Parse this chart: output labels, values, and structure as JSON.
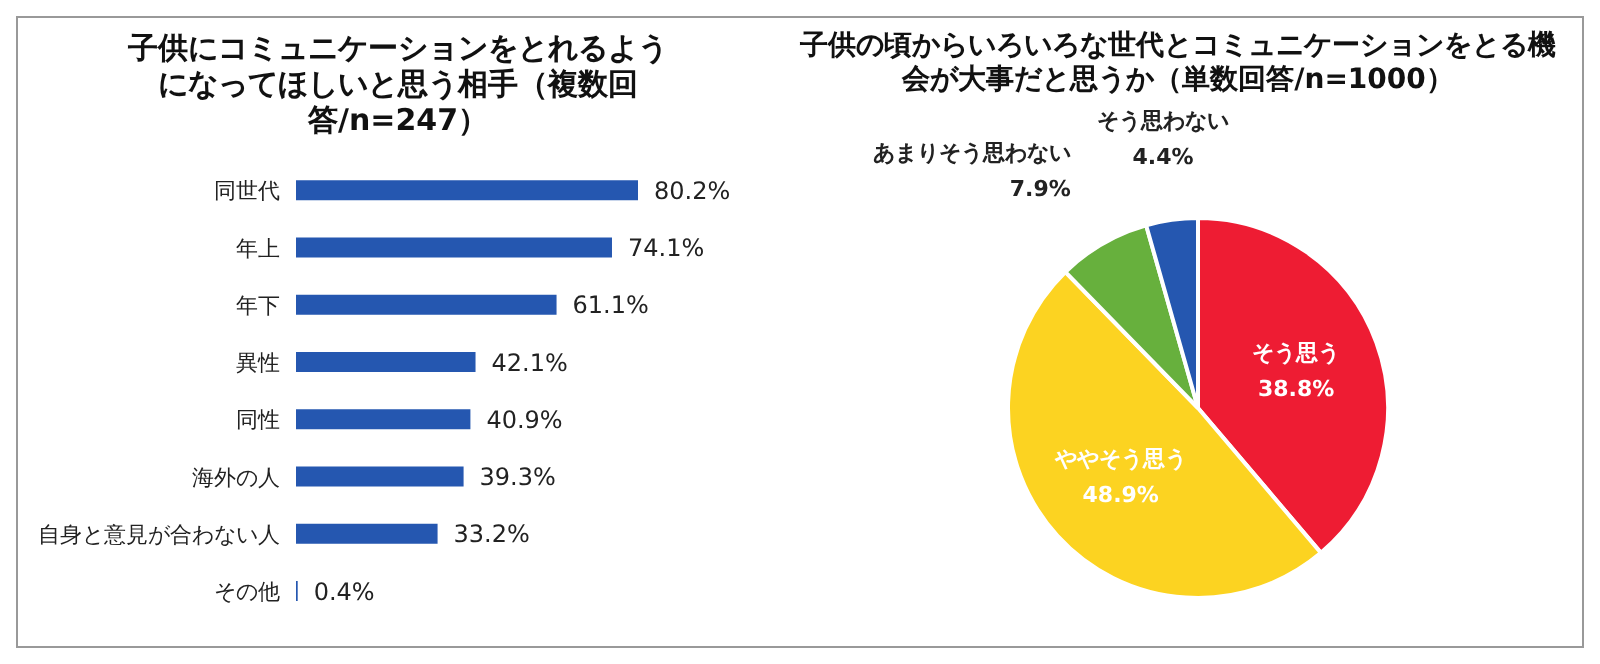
{
  "chart_data": [
    {
      "type": "bar",
      "orientation": "horizontal",
      "title": "子供にコミュニケーションをとれるようになってほしいと思う相手（複数回答/n=247）",
      "categories": [
        "同世代",
        "年上",
        "年下",
        "異性",
        "同性",
        "海外の人",
        "自身と意見が合わない人",
        "その他"
      ],
      "values": [
        80.2,
        74.1,
        61.1,
        42.1,
        40.9,
        39.3,
        33.2,
        0.4
      ],
      "value_labels": [
        "80.2%",
        "74.1%",
        "61.1%",
        "42.1%",
        "40.9%",
        "39.3%",
        "33.2%",
        "0.4%"
      ],
      "color": "#2557b0",
      "tick_labels": "y"
    },
    {
      "type": "pie",
      "title": "子供の頃からいろいろな世代とコミュニケーションをとる機会が大事だと思うか（単数回答/n=1000）",
      "categories": [
        "そう思う",
        "ややそう思う",
        "あまりそう思わない",
        "そう思わない"
      ],
      "values": [
        38.8,
        48.9,
        7.9,
        4.4
      ],
      "value_labels": [
        "38.8%",
        "48.9%",
        "7.9%",
        "4.4%"
      ],
      "colors": [
        "#ee1c33",
        "#fcd321",
        "#67b03d",
        "#2557b0"
      ]
    }
  ]
}
